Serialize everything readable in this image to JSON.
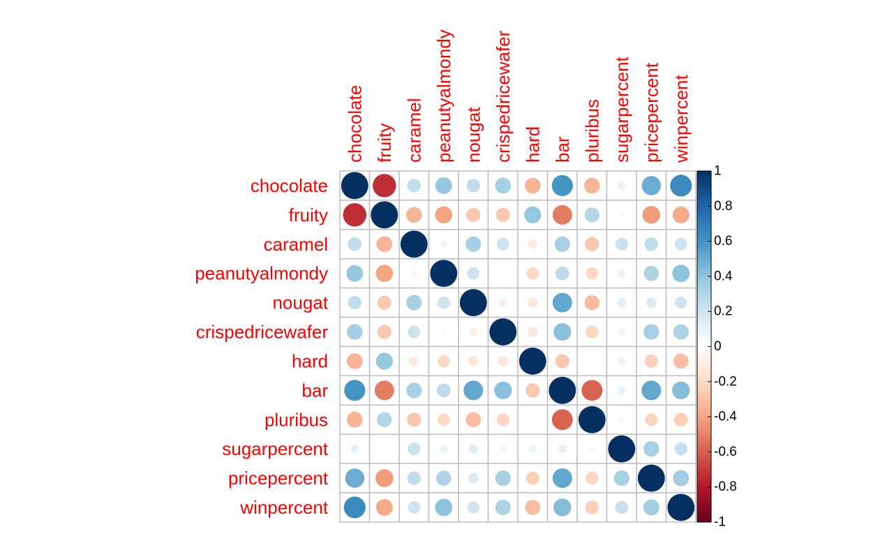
{
  "chart_data": {
    "type": "heatmap",
    "subtype": "correlation-circle-matrix",
    "title": "",
    "variables": [
      "chocolate",
      "fruity",
      "caramel",
      "peanutyalmondy",
      "nougat",
      "crispedricewafer",
      "hard",
      "bar",
      "pluribus",
      "sugarpercent",
      "pricepercent",
      "winpercent"
    ],
    "matrix": [
      [
        1.0,
        -0.74,
        0.25,
        0.38,
        0.25,
        0.34,
        -0.34,
        0.6,
        -0.34,
        0.1,
        0.5,
        0.64
      ],
      [
        -0.74,
        1.0,
        -0.34,
        -0.4,
        -0.27,
        -0.27,
        0.39,
        -0.52,
        0.3,
        -0.03,
        -0.43,
        -0.38
      ],
      [
        0.25,
        -0.34,
        1.0,
        0.06,
        0.33,
        0.21,
        -0.12,
        0.33,
        -0.27,
        0.22,
        0.25,
        0.21
      ],
      [
        0.38,
        -0.4,
        0.06,
        1.0,
        0.21,
        -0.02,
        -0.21,
        0.26,
        -0.21,
        0.09,
        0.31,
        0.41
      ],
      [
        0.25,
        -0.27,
        0.33,
        0.21,
        1.0,
        -0.09,
        -0.14,
        0.52,
        -0.31,
        0.12,
        0.15,
        0.2
      ],
      [
        0.34,
        -0.27,
        0.21,
        -0.02,
        -0.09,
        1.0,
        -0.14,
        0.42,
        -0.22,
        0.07,
        0.33,
        0.32
      ],
      [
        -0.34,
        0.39,
        -0.12,
        -0.21,
        -0.14,
        -0.14,
        1.0,
        -0.27,
        0.01,
        0.09,
        -0.24,
        -0.31
      ],
      [
        0.6,
        -0.52,
        0.33,
        0.26,
        0.52,
        0.42,
        -0.27,
        1.0,
        -0.59,
        0.1,
        0.52,
        0.43
      ],
      [
        -0.34,
        0.3,
        -0.27,
        -0.21,
        -0.31,
        -0.22,
        0.01,
        -0.59,
        1.0,
        0.05,
        -0.22,
        -0.25
      ],
      [
        0.1,
        -0.03,
        0.22,
        0.09,
        0.12,
        0.07,
        0.09,
        0.1,
        0.05,
        1.0,
        0.33,
        0.23
      ],
      [
        0.5,
        -0.43,
        0.25,
        0.31,
        0.15,
        0.33,
        -0.24,
        0.52,
        -0.22,
        0.33,
        1.0,
        0.35
      ],
      [
        0.64,
        -0.38,
        0.21,
        0.41,
        0.2,
        0.32,
        -0.31,
        0.43,
        -0.25,
        0.23,
        0.35,
        1.0
      ]
    ],
    "colorbar": {
      "range": [
        -1,
        1
      ],
      "ticks": [
        "1",
        "0.8",
        "0.6",
        "0.4",
        "0.2",
        "0",
        "-0.2",
        "-0.4",
        "-0.6",
        "-0.8",
        "-1"
      ],
      "tick_values": [
        1,
        0.8,
        0.6,
        0.4,
        0.2,
        0,
        -0.2,
        -0.4,
        -0.6,
        -0.8,
        -1
      ],
      "palette": [
        "#67001F",
        "#B2182B",
        "#D6604D",
        "#F4A582",
        "#FDDBC7",
        "#FFFFFF",
        "#D1E5F0",
        "#92C5DE",
        "#4393C3",
        "#2166AC",
        "#053061"
      ]
    },
    "label_color": "#FF0000",
    "grid": true
  }
}
